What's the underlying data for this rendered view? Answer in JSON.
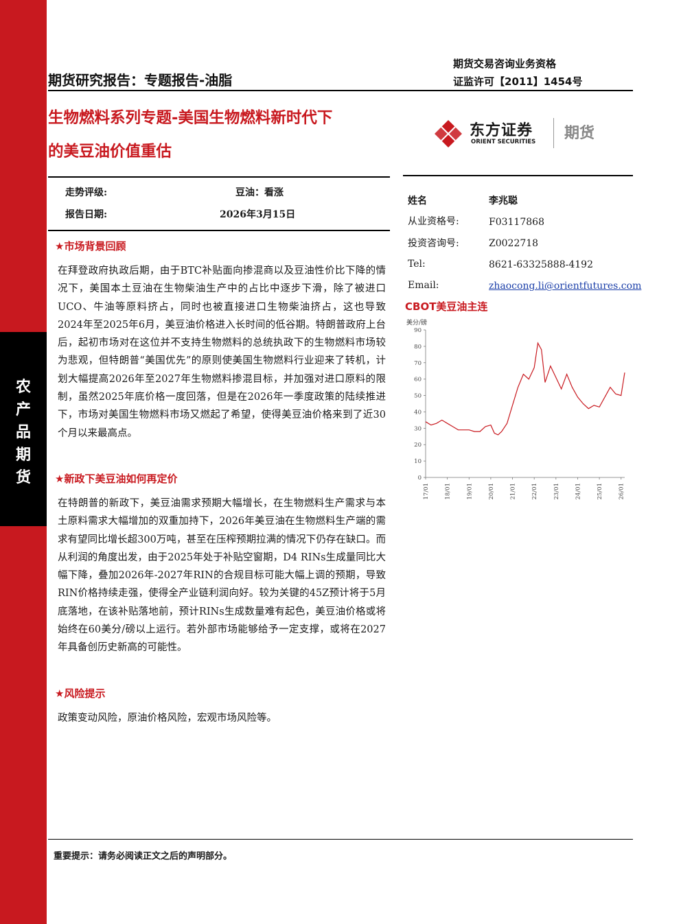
{
  "sidebar": {
    "label_chars": [
      "农",
      "产",
      "品",
      "期",
      "货"
    ]
  },
  "header": {
    "report_type": "期货研究报告：专题报告-油脂",
    "qualification_line1": "期货交易咨询业务资格",
    "qualification_line2": "证监许可【2011】1454号"
  },
  "title": {
    "line1": "生物燃料系列专题-美国生物燃料新时代下",
    "line2": "的美豆油价值重估"
  },
  "logo": {
    "name_cn": "东方证券",
    "name_en": "ORIENT SECURITIES",
    "division": "期货",
    "brand_color": "#c8191f"
  },
  "rating": {
    "trend_label": "走势评级:",
    "trend_value": "豆油：看涨",
    "date_label": "报告日期:",
    "date_value": "2026年3月15日"
  },
  "analyst": {
    "name_label": "姓名",
    "name_value": "李兆聪",
    "cert_label": "从业资格号:",
    "cert_value": "F03117868",
    "advisory_label": "投资咨询号:",
    "advisory_value": "Z0022718",
    "tel_label": "Tel:",
    "tel_value": "8621-63325888-4192",
    "email_label": "Email:",
    "email_value": "zhaocong.li@orientfutures.com"
  },
  "sections": [
    {
      "heading": "★市场背景回顾",
      "body": "在拜登政府执政后期，由于BTC补贴面向掺混商以及豆油性价比下降的情况下，美国本土豆油在生物柴油生产中的占比中逐步下滑，除了被进口UCO、牛油等原料挤占，同时也被直接进口生物柴油挤占，这也导致2024年至2025年6月，美豆油价格进入长时间的低谷期。特朗普政府上台后，起初市场对在这位并不支持生物燃料的总统执政下的生物燃料市场较为悲观，但特朗普“美国优先”的原则使美国生物燃料行业迎来了转机，计划大幅提高2026年至2027年生物燃料掺混目标，并加强对进口原料的限制，虽然2025年底价格一度回落，但是在2026年一季度政策的陆续推进下，市场对美国生物燃料市场又燃起了希望，使得美豆油价格来到了近30个月以来最高点。"
    },
    {
      "heading": "★新政下美豆油如何再定价",
      "body": "在特朗普的新政下，美豆油需求预期大幅增长，在生物燃料生产需求与本土原料需求大幅增加的双重加持下，2026年美豆油在生物燃料生产端的需求有望同比增长超300万吨，甚至在压榨预期拉满的情况下仍存在缺口。而从利润的角度出发，由于2025年处于补贴空窗期，D4 RINs生成量同比大幅下降，叠加2026年-2027年RIN的合规目标可能大幅上调的预期，导致RIN价格持续走强，使得全产业链利润向好。较为关键的45Z预计将于5月底落地，在该补贴落地前，预计RINs生成数量难有起色，美豆油价格或将始终在60美分/磅以上运行。若外部市场能够给予一定支撑，或将在2027年具备创历史新高的可能性。"
    },
    {
      "heading": "★风险提示",
      "body": "政策变动风险，原油价格风险，宏观市场风险等。"
    }
  ],
  "chart_data": {
    "type": "line",
    "title": "CBOT美豆油主连",
    "ylabel": "美分/磅",
    "ylim": [
      0,
      90
    ],
    "yticks": [
      0,
      10,
      20,
      30,
      40,
      50,
      60,
      70,
      80,
      90
    ],
    "xticks": [
      "17/01",
      "18/01",
      "19/01",
      "20/01",
      "21/01",
      "22/01",
      "23/01",
      "24/01",
      "25/01",
      "26/01"
    ],
    "line_color": "#c8191f",
    "x": [
      "17/01",
      "17/04",
      "17/07",
      "17/10",
      "18/01",
      "18/04",
      "18/07",
      "18/10",
      "19/01",
      "19/04",
      "19/07",
      "19/10",
      "20/01",
      "20/03",
      "20/05",
      "20/07",
      "20/10",
      "21/01",
      "21/04",
      "21/07",
      "21/10",
      "22/01",
      "22/03",
      "22/05",
      "22/07",
      "22/10",
      "23/01",
      "23/04",
      "23/07",
      "23/10",
      "24/01",
      "24/04",
      "24/07",
      "24/10",
      "25/01",
      "25/04",
      "25/07",
      "25/10",
      "26/01",
      "26/03"
    ],
    "y": [
      34,
      32,
      33,
      35,
      33,
      31,
      29,
      29,
      29,
      28,
      28,
      31,
      32,
      27,
      26,
      28,
      33,
      44,
      55,
      63,
      60,
      67,
      82,
      78,
      58,
      68,
      61,
      54,
      63,
      55,
      49,
      45,
      42,
      44,
      43,
      49,
      55,
      51,
      50,
      64
    ]
  },
  "footer": {
    "note": "重要提示：请务必阅读正文之后的声明部分。"
  }
}
